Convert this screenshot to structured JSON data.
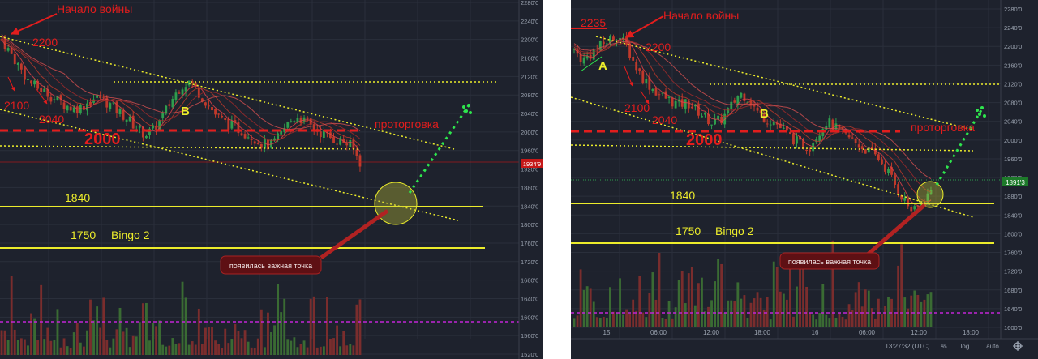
{
  "colors": {
    "background": "#1e222d",
    "grid": "#2a2f3b",
    "up_candle": "#2e9e4d",
    "down_candle": "#c0392b",
    "annotation_red": "#e21d1d",
    "annotation_yellow": "#ecec2b",
    "magenta_line": "#c224d6",
    "volume_up": "#3a6b33",
    "volume_down": "#7a2d2d",
    "badge_red": "#c51818",
    "badge_green": "#1d7a2a",
    "callout_bg": "#5e1014"
  },
  "chart_data": [
    {
      "type": "candlestick",
      "panel": "left",
      "y_ticks": [
        "2280'0",
        "2240'0",
        "2200'0",
        "2160'0",
        "2120'0",
        "2080'0",
        "2040'0",
        "2000'0",
        "1960'0",
        "1920'0",
        "1880'0",
        "1840'0",
        "1800'0",
        "1760'0",
        "1720'0",
        "1680'0",
        "1640'0",
        "1600'0",
        "1560'0",
        "1520'0"
      ],
      "ylim": [
        1515,
        2285
      ],
      "last_price_label": "1934'9",
      "close_path": [
        2200,
        2170,
        2140,
        2110,
        2095,
        2085,
        2070,
        2060,
        2050,
        2055,
        2070,
        2075,
        2060,
        2045,
        2030,
        2010,
        1995,
        2005,
        2035,
        2070,
        2100,
        2110,
        2085,
        2060,
        2035,
        2020,
        2010,
        2000,
        1990,
        1975,
        1970,
        1990,
        2020,
        2035,
        2020,
        2005,
        1995,
        1985,
        1980,
        1970,
        1935
      ],
      "annotations": {
        "war_start": "Начало войны",
        "level_2200": "2200",
        "level_2100": "2100",
        "level_2040": "2040",
        "level_2000": "2000",
        "wave_b": "B",
        "sideways": "проторговка",
        "level_1840": "1840",
        "level_1750": "1750",
        "bingo": "Bingo 2",
        "callout": "появилась важная точка"
      }
    },
    {
      "type": "candlestick",
      "panel": "right",
      "y_ticks": [
        "2280'0",
        "2240'0",
        "2200'0",
        "2160'0",
        "2120'0",
        "2080'0",
        "2040'0",
        "2000'0",
        "1960'0",
        "1920'0",
        "1880'0",
        "1840'0",
        "1800'0",
        "1760'0",
        "1720'0",
        "1680'0",
        "1640'0",
        "1600'0"
      ],
      "ylim": [
        1575,
        2290
      ],
      "x_ticks": [
        "15",
        "06:00",
        "12:00",
        "18:00",
        "16",
        "06:00",
        "12:00",
        "18:00"
      ],
      "last_price_label": "1891'3",
      "close_path": [
        2190,
        2170,
        2185,
        2200,
        2215,
        2225,
        2200,
        2160,
        2130,
        2110,
        2095,
        2085,
        2075,
        2080,
        2065,
        2050,
        2035,
        2045,
        2070,
        2100,
        2090,
        2060,
        2045,
        2040,
        2020,
        2005,
        1990,
        1985,
        2015,
        2040,
        2025,
        2010,
        2000,
        1985,
        1975,
        1960,
        1935,
        1900,
        1870,
        1845,
        1865,
        1891
      ],
      "annotations": {
        "level_2235": "2235",
        "war_start": "Начало войны",
        "level_2200": "2200",
        "wave_a": "A",
        "level_2100": "2100",
        "level_2040": "2040",
        "level_2000": "2000",
        "wave_b": "B",
        "sideways": "проторговка",
        "level_1840": "1840",
        "level_1750": "1750",
        "bingo": "Bingo 2",
        "callout": "появилась важная точка"
      },
      "status_bar": {
        "time": "13:27:32 (UTC)",
        "percent": "%",
        "log": "log",
        "auto": "auto",
        "settings_icon": "gear-icon"
      }
    }
  ]
}
